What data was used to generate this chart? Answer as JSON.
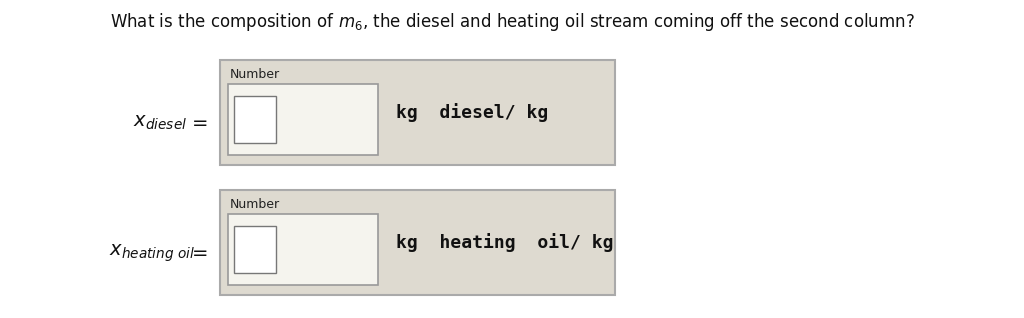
{
  "title": "What is the composition of $m_6$, the diesel and heating oil stream coming off the second column?",
  "title_fontsize": 12,
  "background_color": "#ffffff",
  "box_bg_color": "#dedad0",
  "box_border_color": "#aaaaaa",
  "input_box_bg": "#f5f4ee",
  "input_box_border": "#999999",
  "checkbox_bg": "#ffffff",
  "checkbox_border": "#777777",
  "number_fontsize": 9,
  "units_fontsize": 13,
  "label_fontsize": 14,
  "row1": {
    "label": "x_diesel",
    "units": "kg  diesel/ kg"
  },
  "row2": {
    "label": "x_heating_oil",
    "units": "kg  heating  oil/ kg"
  }
}
